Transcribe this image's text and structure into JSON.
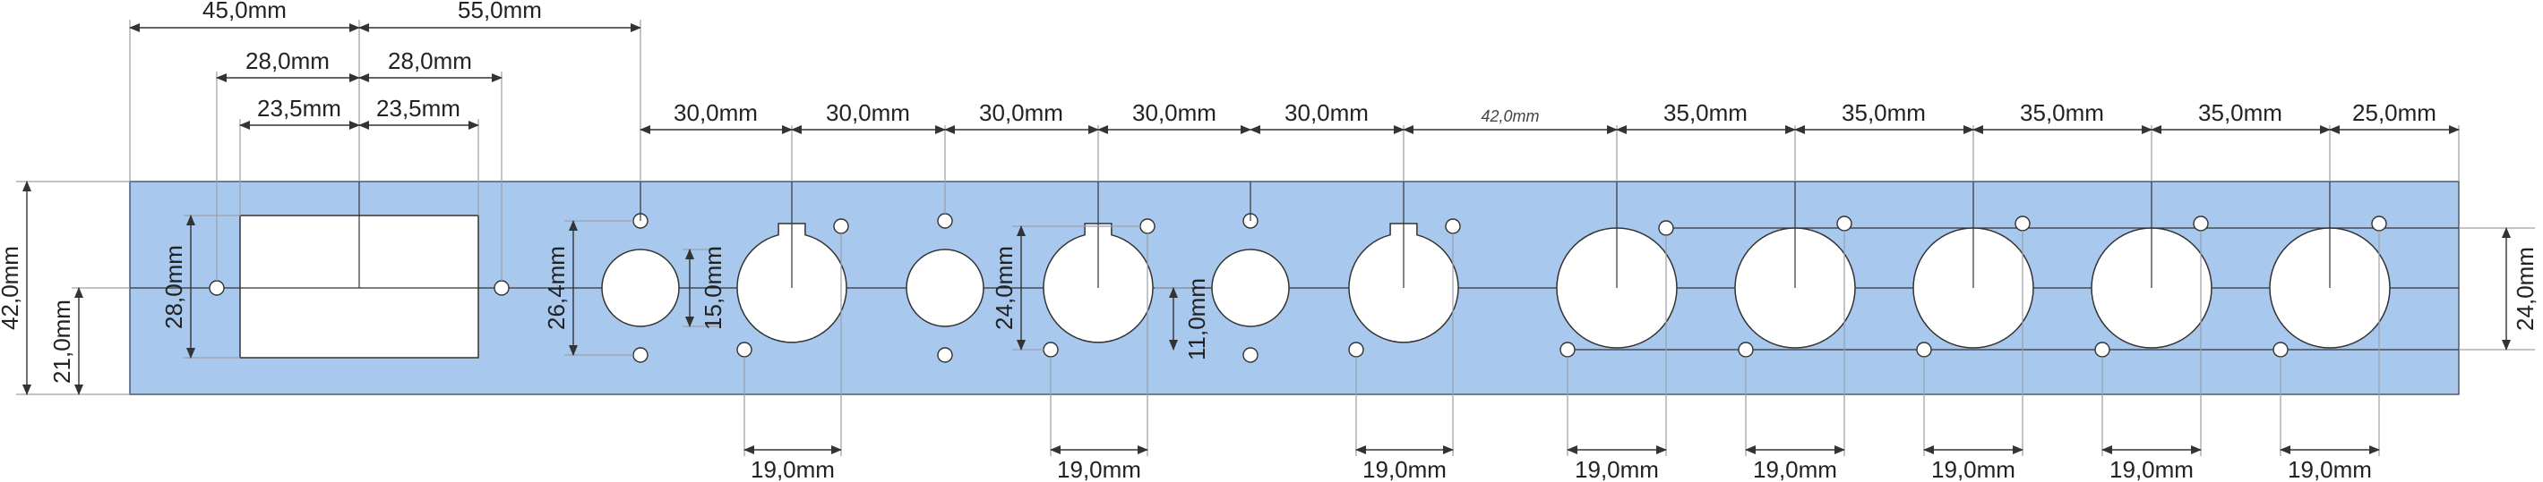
{
  "dimensions": {
    "top": [
      "45,0mm",
      "55,0mm"
    ],
    "rect_outer": [
      "28,0mm",
      "28,0mm"
    ],
    "rect_inner": [
      "23,5mm",
      "23,5mm"
    ],
    "spacing": [
      "30,0mm",
      "30,0mm",
      "30,0mm",
      "30,0mm",
      "30,0mm",
      "42,0mm",
      "35,0mm",
      "35,0mm",
      "35,0mm",
      "35,0mm",
      "25,0mm"
    ],
    "bottom": [
      "19,0mm",
      "19,0mm",
      "19,0mm",
      "19,0mm",
      "19,0mm",
      "19,0mm",
      "19,0mm",
      "19,0mm"
    ],
    "left": {
      "panel_height": "42,0mm",
      "half_height": "21,0mm",
      "rect_height": "28,0mm",
      "hole_pitch": "26,4mm",
      "hole_diameter": "15,0mm",
      "connector_pitch": "24,0mm",
      "connector_offset": "11,0mm"
    },
    "right": "24,0mm"
  }
}
